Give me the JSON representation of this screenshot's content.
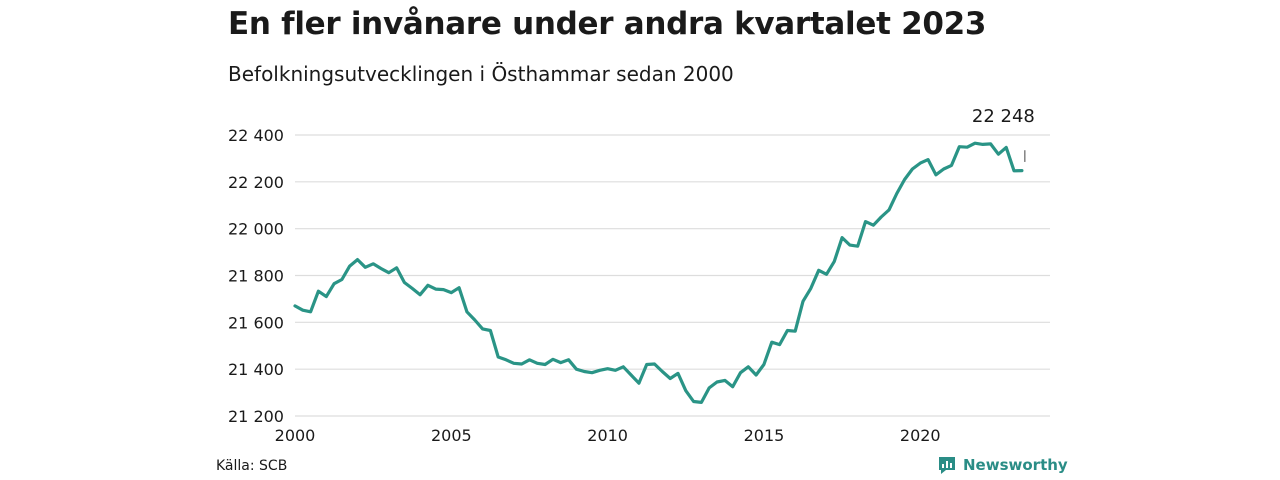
{
  "header": {
    "title": "En fler invånare under andra kvartalet 2023",
    "subtitle": "Befolkningsutvecklingen i Östhammar sedan 2000"
  },
  "footer": {
    "source": "Källa: SCB",
    "brand": "Newsworthy",
    "brand_icon": "chart-bubble-icon"
  },
  "colors": {
    "line": "#2a9486",
    "grid": "#dddddd",
    "text": "#1a1a1a",
    "brand": "#2a8d86"
  },
  "chart_data": {
    "type": "line",
    "title": "En fler invånare under andra kvartalet 2023",
    "subtitle": "Befolkningsutvecklingen i Östhammar sedan 2000",
    "xlabel": "",
    "ylabel": "",
    "xlim": [
      2000,
      2024.15
    ],
    "ylim": [
      21200,
      22400
    ],
    "x_ticks": [
      2000,
      2005,
      2010,
      2015,
      2020
    ],
    "x_tick_labels": [
      "2000",
      "2005",
      "2010",
      "2015",
      "2020"
    ],
    "y_ticks": [
      21200,
      21400,
      21600,
      21800,
      22000,
      22200,
      22400
    ],
    "y_tick_labels": [
      "21 200",
      "21 400",
      "21 600",
      "21 800",
      "22 000",
      "22 200",
      "22 400"
    ],
    "grid": true,
    "annotation": {
      "label": "22 248",
      "x": 2023.25,
      "y": 22248
    },
    "series": [
      {
        "x_start": 2000.0,
        "x_step": 0.25,
        "values": [
          21670,
          21652,
          21645,
          21733,
          21710,
          21765,
          21783,
          21840,
          21868,
          21835,
          21850,
          21830,
          21812,
          21833,
          21770,
          21745,
          21718,
          21758,
          21742,
          21740,
          21727,
          21748,
          21645,
          21610,
          21572,
          21565,
          21452,
          21440,
          21425,
          21422,
          21440,
          21425,
          21420,
          21442,
          21428,
          21440,
          21400,
          21390,
          21385,
          21395,
          21402,
          21395,
          21410,
          21375,
          21340,
          21420,
          21422,
          21390,
          21360,
          21382,
          21308,
          21262,
          21258,
          21320,
          21345,
          21352,
          21325,
          21385,
          21410,
          21375,
          21420,
          21515,
          21505,
          21565,
          21562,
          21690,
          21745,
          21822,
          21805,
          21860,
          21962,
          21930,
          21925,
          22030,
          22015,
          22050,
          22080,
          22150,
          22210,
          22255,
          22280,
          22295,
          22230,
          22255,
          22270,
          22350,
          22348,
          22365,
          22360,
          22362,
          22318,
          22347,
          22247,
          22248
        ]
      }
    ]
  }
}
